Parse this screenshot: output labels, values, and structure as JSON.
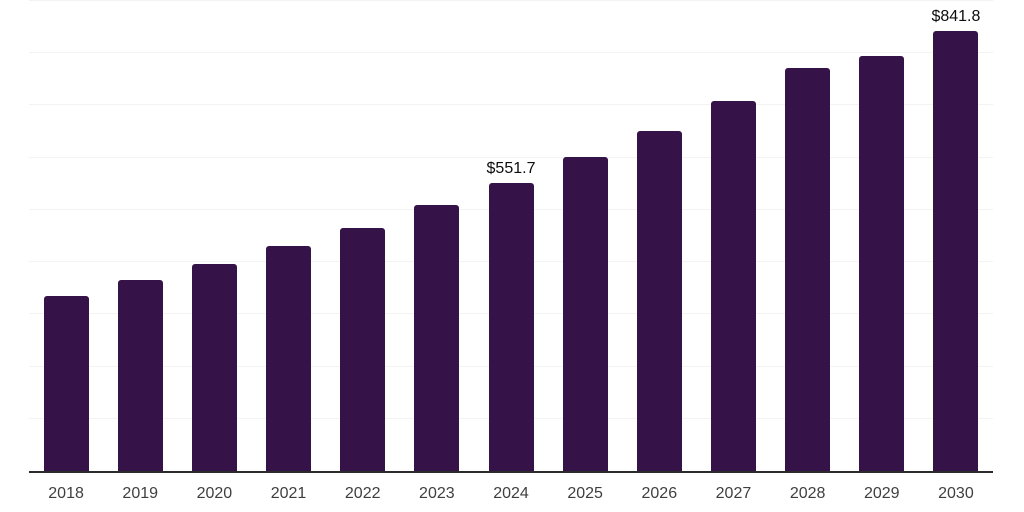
{
  "chart_data": {
    "type": "bar",
    "title": "",
    "xlabel": "",
    "ylabel": "",
    "categories": [
      "2018",
      "2019",
      "2020",
      "2021",
      "2022",
      "2023",
      "2024",
      "2025",
      "2026",
      "2027",
      "2028",
      "2029",
      "2030"
    ],
    "values": [
      334.7,
      365.7,
      397.3,
      431.7,
      464.9,
      508.9,
      551.7,
      600.7,
      651.8,
      707.8,
      771.0,
      795.5,
      841.8
    ],
    "data_labels": {
      "2024": "$551.7",
      "2030": "$841.8"
    },
    "ylim": [
      0,
      900
    ],
    "grid_step": 100,
    "grid": true,
    "legend": false,
    "colors": {
      "bar": "#351349",
      "gridline": "#f3f3f3",
      "axis": "#2b2b2b",
      "tick_label": "#3f3f3f",
      "data_label": "#0d0d0d",
      "background": "#ffffff"
    }
  }
}
